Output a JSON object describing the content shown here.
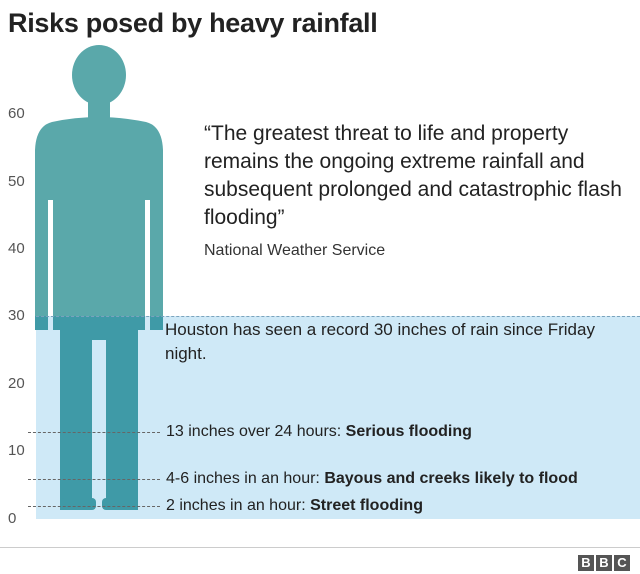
{
  "title": "Risks posed by heavy rainfall",
  "y_axis": {
    "ticks": [
      "60",
      "50",
      "40",
      "30",
      "20",
      "10",
      "0"
    ],
    "range": [
      0,
      60
    ]
  },
  "quote": {
    "text": "“The greatest threat to life and property remains the ongoing extreme rainfall and subsequent prolonged and catastrophic flash flooding”",
    "source": "National Weather Service"
  },
  "record": {
    "level": 30,
    "text": "Houston has seen a record 30 inches of rain since Friday night."
  },
  "levels": [
    {
      "value": 13,
      "prefix": "13 inches over 24 hours: ",
      "emphasis": "Serious flooding"
    },
    {
      "value": 5,
      "prefix": "4-6 inches in an hour: ",
      "emphasis": "Bayous and creeks likely to flood"
    },
    {
      "value": 2,
      "prefix": "2 inches in an hour: ",
      "emphasis": "Street flooding"
    }
  ],
  "colors": {
    "figure": "#5aa8aa",
    "water": "#cfe9f7",
    "figure_underwater": "#3f9aa7"
  },
  "logo": {
    "letters": [
      "B",
      "B",
      "C"
    ]
  }
}
